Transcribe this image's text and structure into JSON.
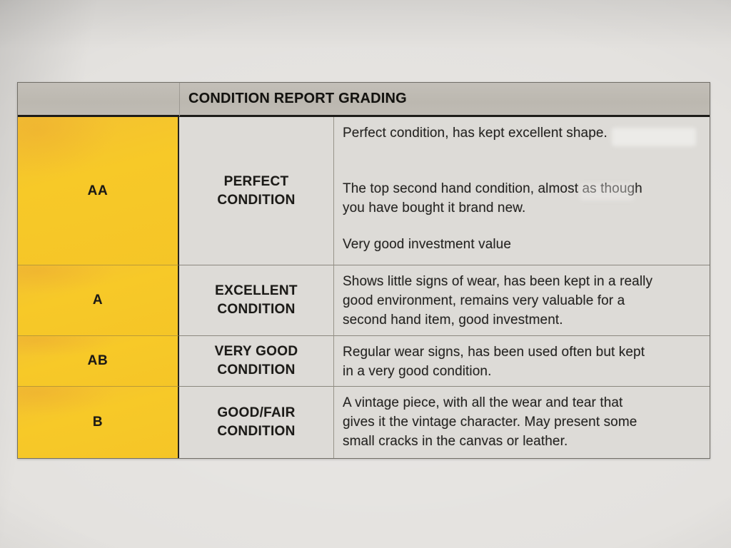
{
  "document": {
    "type": "photographed-printed-table",
    "title": "CONDITION REPORT GRADING"
  },
  "table": {
    "title": "CONDITION REPORT GRADING",
    "columns": [
      "grade-code",
      "condition-name",
      "condition-description"
    ],
    "rows": [
      {
        "code": "AA",
        "label_lines": [
          "PERFECT",
          "CONDITION"
        ],
        "paragraphs": [
          [
            "Perfect condition, has kept excellent shape."
          ],
          [
            "The top second hand condition, almost as though",
            "you have bought it brand new."
          ],
          [
            "Very good investment value"
          ]
        ]
      },
      {
        "code": "A",
        "label_lines": [
          "EXCELLENT",
          "CONDITION"
        ],
        "paragraphs": [
          [
            "Shows little signs of wear, has been kept in a really",
            "good environment, remains very valuable for a",
            "second hand item, good investment."
          ]
        ]
      },
      {
        "code": "AB",
        "label_lines": [
          "VERY GOOD",
          "CONDITION"
        ],
        "paragraphs": [
          [
            "Regular wear signs, has been used often but kept",
            "in a very good condition."
          ]
        ]
      },
      {
        "code": "B",
        "label_lines": [
          "GOOD/FAIR",
          "CONDITION"
        ],
        "paragraphs": [
          [
            "A vintage piece, with all the wear and tear that",
            "gives it the vintage character. May present some",
            "small cracks in the canvas or leather."
          ]
        ]
      }
    ],
    "colors": {
      "grade_column_yellow": "#F6C72A",
      "header_gray": "#BEBAB2",
      "cell_background": "#DDDBD7",
      "paper_background": "#E4E2DF",
      "text": "#232220"
    }
  }
}
